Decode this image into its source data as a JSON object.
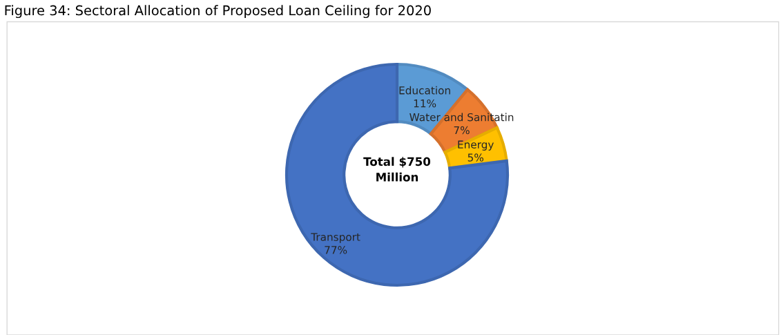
{
  "chart_data": {
    "type": "donut",
    "title": "Figure 34: Sectoral Allocation of Proposed Loan Ceiling for 2020",
    "categories": [
      "Education",
      "Water and Sanitatin",
      "Energy",
      "Transport"
    ],
    "values": [
      11,
      7,
      5,
      77
    ],
    "colors": [
      "#5b9bd5",
      "#ed7d31",
      "#ffc000",
      "#4472c4"
    ],
    "value_labels": [
      "11%",
      "7%",
      "5%",
      "77%"
    ],
    "annotations": [
      "Total $750\nMillion"
    ],
    "legend": false
  }
}
